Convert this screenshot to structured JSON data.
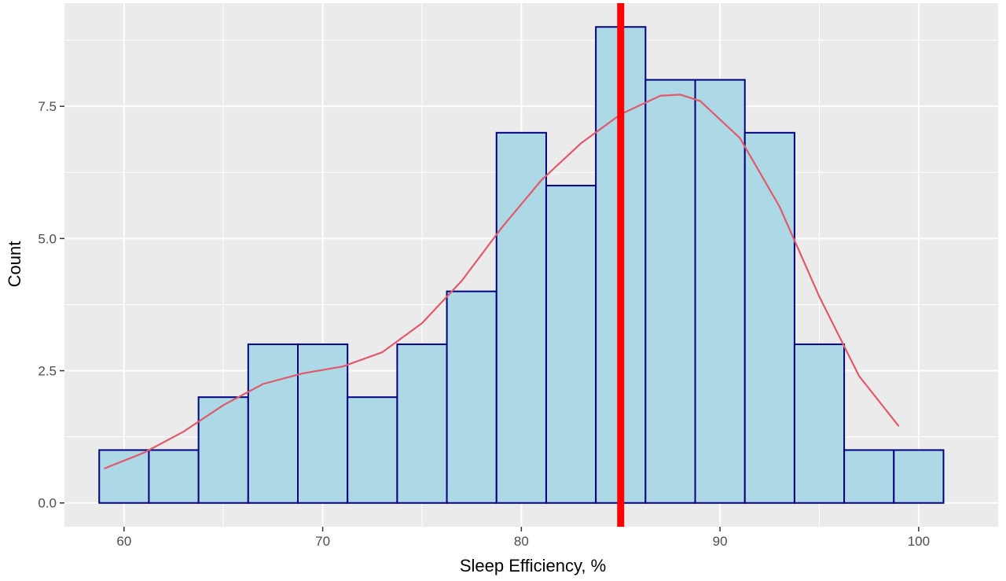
{
  "chart_data": {
    "type": "histogram",
    "xlabel": "Sleep Efficiency, %",
    "ylabel": "Count",
    "xlim": [
      57,
      104
    ],
    "ylim": [
      -0.45,
      9.45
    ],
    "x_ticks": [
      60,
      70,
      80,
      90,
      100
    ],
    "y_ticks": [
      0.0,
      2.5,
      5.0,
      7.5
    ],
    "y_tick_labels": [
      "0.0",
      "2.5",
      "5.0",
      "7.5"
    ],
    "bins": [
      {
        "x0": 58.75,
        "x1": 61.25,
        "count": 1
      },
      {
        "x0": 61.25,
        "x1": 63.75,
        "count": 1
      },
      {
        "x0": 63.75,
        "x1": 66.25,
        "count": 2
      },
      {
        "x0": 66.25,
        "x1": 68.75,
        "count": 3
      },
      {
        "x0": 68.75,
        "x1": 71.25,
        "count": 3
      },
      {
        "x0": 71.25,
        "x1": 73.75,
        "count": 2
      },
      {
        "x0": 73.75,
        "x1": 76.25,
        "count": 3
      },
      {
        "x0": 76.25,
        "x1": 78.75,
        "count": 4
      },
      {
        "x0": 78.75,
        "x1": 81.25,
        "count": 7
      },
      {
        "x0": 81.25,
        "x1": 83.75,
        "count": 6
      },
      {
        "x0": 83.75,
        "x1": 86.25,
        "count": 9
      },
      {
        "x0": 86.25,
        "x1": 88.75,
        "count": 8
      },
      {
        "x0": 88.75,
        "x1": 91.25,
        "count": 8
      },
      {
        "x0": 91.25,
        "x1": 93.75,
        "count": 7
      },
      {
        "x0": 93.75,
        "x1": 96.25,
        "count": 3
      },
      {
        "x0": 96.25,
        "x1": 98.75,
        "count": 1
      },
      {
        "x0": 98.75,
        "x1": 101.25,
        "count": 1
      }
    ],
    "density_curve": {
      "color": "#e05a6b",
      "points": [
        [
          59,
          0.65
        ],
        [
          61,
          0.95
        ],
        [
          63,
          1.35
        ],
        [
          65,
          1.85
        ],
        [
          67,
          2.25
        ],
        [
          69,
          2.45
        ],
        [
          71,
          2.58
        ],
        [
          73,
          2.85
        ],
        [
          75,
          3.4
        ],
        [
          77,
          4.2
        ],
        [
          79,
          5.2
        ],
        [
          81,
          6.1
        ],
        [
          83,
          6.8
        ],
        [
          85,
          7.35
        ],
        [
          87,
          7.7
        ],
        [
          88,
          7.72
        ],
        [
          89,
          7.6
        ],
        [
          91,
          6.9
        ],
        [
          93,
          5.6
        ],
        [
          95,
          3.9
        ],
        [
          97,
          2.4
        ],
        [
          99,
          1.45
        ]
      ]
    },
    "reference_line": {
      "x": 85,
      "color": "#ff0000"
    },
    "bar_fill": "#add8e6",
    "bar_stroke": "#000080",
    "panel_background": "#ebebeb",
    "grid": true,
    "grid_color": "#ffffff"
  }
}
